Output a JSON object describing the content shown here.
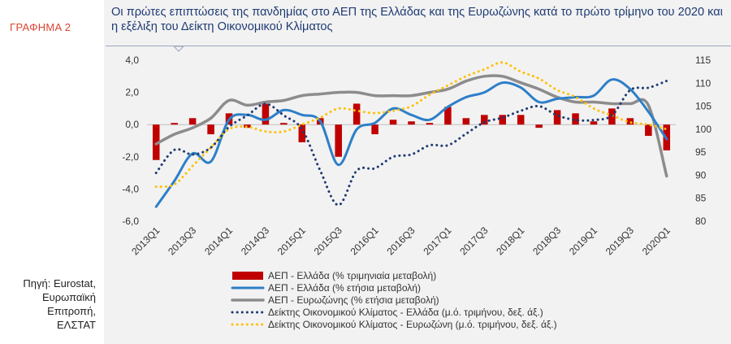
{
  "figure_label": "ΓΡΑΦΗΜΑ 2",
  "source": "Πηγή: Eurostat,\nΕυρωπαϊκή\nΕπιτροπή,\nΕΛΣΤΑΤ",
  "colors": {
    "gdp_gr_qoq": "#c00000",
    "gdp_gr_yoy": "#2d7fc8",
    "gdp_ez_yoy": "#8c8c8c",
    "esi_gr": "#1f3b73",
    "esi_ez": "#ffc000",
    "title": "#1f3b73"
  },
  "chart_data": {
    "type": "bar",
    "title": "Οι πρώτες επιπτώσεις της πανδημίας στο ΑΕΠ της Ελλάδας και της Ευρωζώνης κατά το πρώτο τρίμηνο του 2020 και η εξέλιξη του Δείκτη Οικονομικού Κλίματος",
    "x": [
      "2013Q1",
      "2013Q2",
      "2013Q3",
      "2013Q4",
      "2014Q1",
      "2014Q2",
      "2014Q3",
      "2014Q4",
      "2015Q1",
      "2015Q2",
      "2015Q3",
      "2015Q4",
      "2016Q1",
      "2016Q2",
      "2016Q3",
      "2016Q4",
      "2017Q1",
      "2017Q2",
      "2017Q3",
      "2017Q4",
      "2018Q1",
      "2018Q2",
      "2018Q3",
      "2018Q4",
      "2019Q1",
      "2019Q2",
      "2019Q3",
      "2019Q4",
      "2020Q1"
    ],
    "x_tick_labels": [
      "2013Q1",
      "2013Q3",
      "2014Q1",
      "2014Q3",
      "2015Q1",
      "2015Q3",
      "2016Q1",
      "2016Q3",
      "2017Q1",
      "2017Q3",
      "2018Q1",
      "2018Q3",
      "2019Q1",
      "2019Q3",
      "2020Q1"
    ],
    "y_left": {
      "ticks": [
        "4,0",
        "2,0",
        "0,0",
        "-2,0",
        "-4,0",
        "-6,0"
      ],
      "range": [
        -6,
        4
      ]
    },
    "y_right": {
      "ticks": [
        "115",
        "110",
        "105",
        "100",
        "95",
        "90",
        "85",
        "80"
      ],
      "range": [
        80,
        115
      ]
    },
    "legend_position": "bottom",
    "series": [
      {
        "name": "ΑΕΠ - Ελλάδα  (% τριμηνιαία μεταβολή)",
        "style": "bar",
        "axis": "left",
        "values": [
          -2.2,
          0.1,
          0.4,
          -0.6,
          0.7,
          -0.2,
          1.3,
          0.1,
          -1.1,
          0.4,
          -2.0,
          1.3,
          -0.6,
          0.3,
          0.2,
          0.1,
          1.1,
          0.4,
          0.6,
          0.6,
          0.6,
          -0.2,
          0.9,
          0.7,
          0.2,
          1.0,
          0.4,
          -0.7,
          -1.6
        ]
      },
      {
        "name": "ΑΕΠ - Ελλάδα  (% ετήσια μεταβολή)",
        "style": "line",
        "axis": "left",
        "values": [
          -5.1,
          -3.5,
          -1.8,
          -2.3,
          0.3,
          0.6,
          0.3,
          0.9,
          0.6,
          0.2,
          -2.5,
          -0.3,
          0.1,
          1.0,
          0.6,
          0.3,
          1.1,
          1.7,
          2.0,
          2.6,
          2.3,
          1.4,
          1.6,
          1.7,
          1.8,
          2.8,
          2.2,
          0.8,
          -0.9
        ]
      },
      {
        "name": "ΑΕΠ - Ευρωζώνης  (% ετήσια μεταβολή)",
        "style": "line",
        "axis": "left",
        "values": [
          -1.2,
          -0.6,
          -0.2,
          0.4,
          1.5,
          1.2,
          1.4,
          1.5,
          1.8,
          1.9,
          2.0,
          2.0,
          1.8,
          1.8,
          1.8,
          2.0,
          2.2,
          2.7,
          3.0,
          3.0,
          2.6,
          2.2,
          1.7,
          1.4,
          1.4,
          1.3,
          1.3,
          1.2,
          -3.2
        ]
      },
      {
        "name": "Δείκτης Οικονομικού Κλίματος - Ελλάδα  (μ.ό. τριμήνου, δεξ. άξ.)",
        "style": "dotted",
        "axis": "right",
        "values": [
          90.5,
          95.5,
          94.5,
          96.0,
          100.5,
          103.0,
          105.5,
          103.0,
          100.0,
          91.0,
          83.5,
          91.0,
          91.5,
          94.0,
          94.5,
          96.5,
          96.5,
          99.0,
          101.5,
          102.5,
          104.0,
          105.0,
          103.0,
          102.0,
          102.0,
          103.0,
          108.5,
          109.0,
          110.5
        ]
      },
      {
        "name": "Δείκτης Οικονομικού Κλίματος - Ευρωζώνη  (μ.ό. τριμήνου, δεξ. άξ.)",
        "style": "dotted",
        "axis": "right",
        "values": [
          87.5,
          88.0,
          92.0,
          96.0,
          100.0,
          100.5,
          99.5,
          99.5,
          101.0,
          102.5,
          104.5,
          104.0,
          103.5,
          104.0,
          105.0,
          107.5,
          109.5,
          111.5,
          113.0,
          114.5,
          112.5,
          111.0,
          108.5,
          107.0,
          104.5,
          103.0,
          101.5,
          101.0,
          100.0
        ]
      }
    ]
  }
}
